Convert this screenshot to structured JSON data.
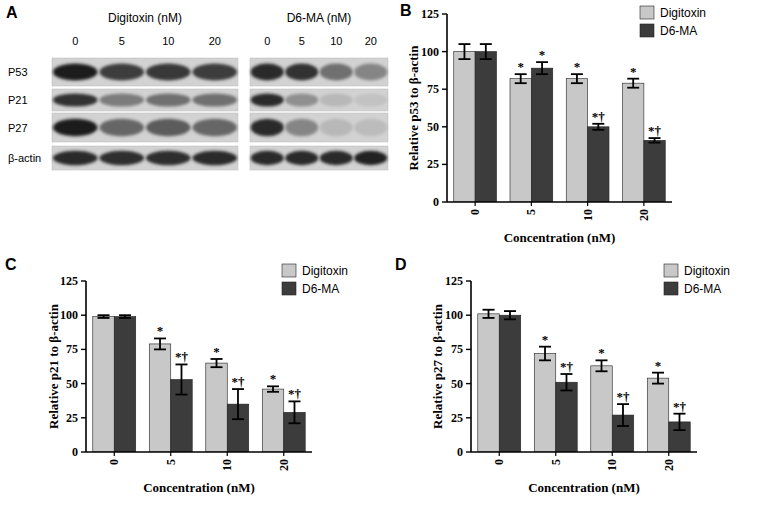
{
  "blot": {
    "panel": "A",
    "rows": [
      "P53",
      "P21",
      "P27",
      "β-actin"
    ],
    "groups": [
      {
        "title": "Digitoxin (nM)",
        "lanes": [
          "0",
          "5",
          "10",
          "20"
        ],
        "intensity": [
          [
            95,
            80,
            82,
            80
          ],
          [
            85,
            50,
            55,
            55
          ],
          [
            95,
            60,
            65,
            60
          ],
          [
            90,
            88,
            88,
            90
          ]
        ]
      },
      {
        "title": "D6-MA (nM)",
        "lanes": [
          "0",
          "5",
          "10",
          "20"
        ],
        "intensity": [
          [
            90,
            85,
            55,
            45
          ],
          [
            90,
            40,
            20,
            15
          ],
          [
            90,
            45,
            20,
            18
          ],
          [
            90,
            90,
            90,
            92
          ]
        ]
      }
    ]
  },
  "chart_data": [
    {
      "type": "bar",
      "title": "B",
      "x_label": "Concentration (nM)",
      "y_label": "Relative p53 to β-actin",
      "categories": [
        "0",
        "5",
        "10",
        "20"
      ],
      "ylim": [
        0,
        125
      ],
      "yticks": [
        0,
        25,
        50,
        75,
        100,
        125
      ],
      "legend": "upper right",
      "grid": false,
      "series": [
        {
          "name": "Digitoxin",
          "color": "#c8c8c8",
          "values": [
            100,
            82,
            82,
            79
          ],
          "errors": [
            5,
            3,
            3,
            3
          ],
          "significance": [
            null,
            "*",
            "*",
            "*"
          ]
        },
        {
          "name": "D6-MA",
          "color": "#3c3c3c",
          "values": [
            100,
            89,
            50,
            41
          ],
          "errors": [
            5,
            4,
            2,
            1.5
          ],
          "significance": [
            null,
            "*",
            "*†",
            "*†"
          ]
        }
      ]
    },
    {
      "type": "bar",
      "title": "C",
      "x_label": "Concentration (nM)",
      "y_label": "Relative p21 to β-actin",
      "categories": [
        "0",
        "5",
        "10",
        "20"
      ],
      "ylim": [
        0,
        125
      ],
      "yticks": [
        0,
        25,
        50,
        75,
        100,
        125
      ],
      "legend": "upper right",
      "grid": false,
      "series": [
        {
          "name": "Digitoxin",
          "color": "#c8c8c8",
          "values": [
            99,
            79,
            65,
            46
          ],
          "errors": [
            1,
            4,
            3,
            2
          ],
          "significance": [
            null,
            "*",
            "*",
            "*"
          ]
        },
        {
          "name": "D6-MA",
          "color": "#3c3c3c",
          "values": [
            99,
            53,
            35,
            29
          ],
          "errors": [
            1,
            11,
            11,
            8
          ],
          "significance": [
            null,
            "*†",
            "*†",
            "*†"
          ]
        }
      ]
    },
    {
      "type": "bar",
      "title": "D",
      "x_label": "Concentration (nM)",
      "y_label": "Relative p27 to β-actin",
      "categories": [
        "0",
        "5",
        "10",
        "20"
      ],
      "ylim": [
        0,
        125
      ],
      "yticks": [
        0,
        25,
        50,
        75,
        100,
        125
      ],
      "legend": "upper right",
      "grid": false,
      "series": [
        {
          "name": "Digitoxin",
          "color": "#c8c8c8",
          "values": [
            101,
            72,
            63,
            54
          ],
          "errors": [
            3,
            5,
            4,
            4
          ],
          "significance": [
            null,
            "*",
            "*",
            "*"
          ]
        },
        {
          "name": "D6-MA",
          "color": "#3c3c3c",
          "values": [
            100,
            51,
            27,
            22
          ],
          "errors": [
            3,
            6,
            8,
            6
          ],
          "significance": [
            null,
            "*†",
            "*†",
            "*†"
          ]
        }
      ]
    }
  ]
}
